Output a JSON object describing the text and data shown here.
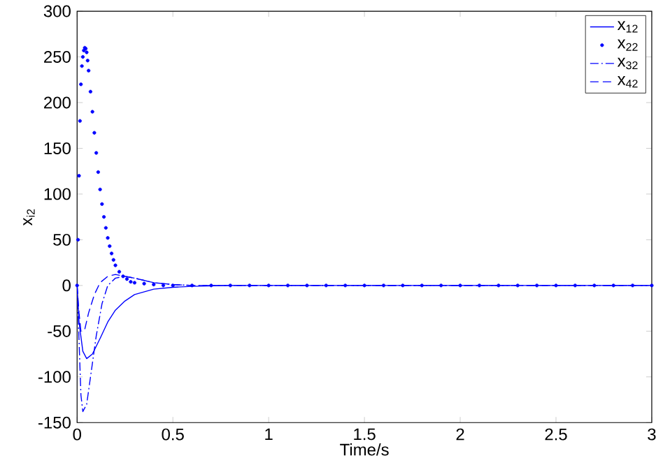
{
  "chart_data": {
    "type": "line",
    "xlabel": "Time/s",
    "ylabel": "x$_{i2}$",
    "xlim": [
      0,
      3
    ],
    "ylim": [
      -150,
      300
    ],
    "xticks": [
      0,
      0.5,
      1,
      1.5,
      2,
      2.5,
      3
    ],
    "yticks": [
      -150,
      -100,
      -50,
      0,
      50,
      100,
      150,
      200,
      250,
      300
    ],
    "grid": false,
    "legend": "top right",
    "series": [
      {
        "name": "x$_{12}$",
        "color": "#0000ff",
        "line_style": "solid",
        "marker": "none",
        "x": [
          0,
          0.01,
          0.03,
          0.05,
          0.08,
          0.12,
          0.16,
          0.2,
          0.25,
          0.3,
          0.4,
          0.5,
          0.6,
          0.8,
          3
        ],
        "values": [
          0,
          -40,
          -72,
          -80,
          -75,
          -58,
          -40,
          -27,
          -17,
          -10,
          -4,
          -2,
          -1,
          0,
          0
        ]
      },
      {
        "name": "x$_{22}$",
        "color": "#0000ff",
        "type": "scatter",
        "marker": "circle",
        "x": [
          0,
          0.005,
          0.01,
          0.015,
          0.02,
          0.025,
          0.03,
          0.035,
          0.04,
          0.045,
          0.05,
          0.055,
          0.06,
          0.07,
          0.08,
          0.09,
          0.1,
          0.11,
          0.12,
          0.13,
          0.14,
          0.15,
          0.16,
          0.17,
          0.18,
          0.19,
          0.2,
          0.22,
          0.24,
          0.26,
          0.28,
          0.3,
          0.35,
          0.4,
          0.45,
          0.5,
          0.6,
          0.7,
          0.8,
          0.9,
          1,
          1.1,
          1.2,
          1.3,
          1.4,
          1.5,
          1.6,
          1.7,
          1.8,
          1.9,
          2,
          2.1,
          2.2,
          2.3,
          2.4,
          2.5,
          2.6,
          2.7,
          2.8,
          2.9,
          3
        ],
        "values": [
          0,
          50,
          120,
          180,
          220,
          240,
          250,
          257,
          260,
          259,
          255,
          246,
          235,
          212,
          190,
          167,
          145,
          124,
          105,
          89,
          75,
          63,
          52,
          43,
          35,
          28,
          22,
          15,
          10,
          7,
          4,
          3,
          2,
          1,
          0,
          0,
          0,
          0,
          0,
          0,
          0,
          0,
          0,
          0,
          0,
          0,
          0,
          0,
          0,
          0,
          0,
          0,
          0,
          0,
          0,
          0,
          0,
          0,
          0,
          0,
          0
        ]
      },
      {
        "name": "x$_{32}$",
        "color": "#0000ff",
        "line_style": "dashdot",
        "marker": "none",
        "x": [
          0,
          0.01,
          0.02,
          0.03,
          0.05,
          0.07,
          0.1,
          0.13,
          0.16,
          0.2,
          0.25,
          0.3,
          0.4,
          0.5,
          0.6,
          3
        ],
        "values": [
          0,
          -60,
          -120,
          -138,
          -130,
          -100,
          -55,
          -20,
          0,
          8,
          10,
          8,
          3,
          1,
          0,
          0
        ]
      },
      {
        "name": "x$_{42}$",
        "color": "#0000ff",
        "line_style": "dashed",
        "marker": "none",
        "x": [
          0,
          0.01,
          0.02,
          0.04,
          0.06,
          0.09,
          0.12,
          0.16,
          0.2,
          0.3,
          0.4,
          0.5,
          0.6,
          3
        ],
        "values": [
          0,
          -30,
          -50,
          -48,
          -30,
          -10,
          3,
          10,
          12,
          8,
          3,
          1,
          0,
          0
        ]
      }
    ]
  }
}
